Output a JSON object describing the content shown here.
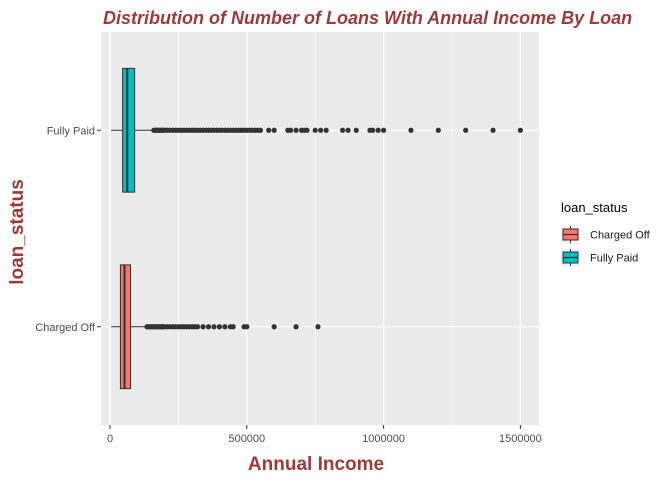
{
  "chart_data": {
    "type": "boxplot",
    "orientation": "horizontal",
    "title": "Distribution of Number of Loans With Annual Income By Loan",
    "xlabel": "Annual Income",
    "ylabel": "loan_status",
    "xlim": [
      -33000,
      1568000
    ],
    "x_ticks": [
      0,
      500000,
      1000000,
      1500000
    ],
    "x_tick_labels": [
      "0",
      "500000",
      "1000000",
      "1500000"
    ],
    "grid": true,
    "legend_title": "loan_status",
    "legend_position": "right",
    "categories": [
      "Charged Off",
      "Fully Paid"
    ],
    "series": [
      {
        "name": "Charged Off",
        "color": "#F8766D",
        "box": {
          "lower_whisker": 4000,
          "q1": 38000,
          "median": 53000,
          "q3": 75000,
          "upper_whisker": 130000
        },
        "outliers": [
          135000,
          140000,
          145000,
          150000,
          155000,
          160000,
          165000,
          170000,
          175000,
          180000,
          185000,
          190000,
          195000,
          200000,
          210000,
          220000,
          230000,
          240000,
          250000,
          260000,
          270000,
          280000,
          290000,
          300000,
          310000,
          320000,
          340000,
          360000,
          380000,
          400000,
          420000,
          440000,
          450000,
          490000,
          500000,
          600000,
          680000,
          760000
        ]
      },
      {
        "name": "Fully Paid",
        "color": "#00BFC4",
        "box": {
          "lower_whisker": 4000,
          "q1": 46000,
          "median": 63000,
          "q3": 90000,
          "upper_whisker": 155000
        },
        "outliers": [
          160000,
          165000,
          170000,
          175000,
          180000,
          185000,
          190000,
          195000,
          200000,
          210000,
          220000,
          230000,
          240000,
          250000,
          260000,
          270000,
          280000,
          290000,
          300000,
          310000,
          320000,
          330000,
          340000,
          350000,
          360000,
          370000,
          380000,
          390000,
          400000,
          410000,
          420000,
          430000,
          440000,
          450000,
          460000,
          470000,
          480000,
          490000,
          500000,
          510000,
          520000,
          530000,
          540000,
          550000,
          580000,
          600000,
          650000,
          660000,
          680000,
          700000,
          710000,
          720000,
          750000,
          770000,
          790000,
          850000,
          870000,
          900000,
          950000,
          960000,
          980000,
          1000000,
          1100000,
          1200000,
          1300000,
          1400000,
          1500000
        ]
      }
    ]
  },
  "colors": {
    "panel_background": "#EBEBEB",
    "grid_major": "#FFFFFF",
    "title_color": "#9E3A3A",
    "axis_title_color": "#9E3A3A",
    "tick_label_color": "#4D4D4D",
    "outlier_color": "#333333"
  }
}
